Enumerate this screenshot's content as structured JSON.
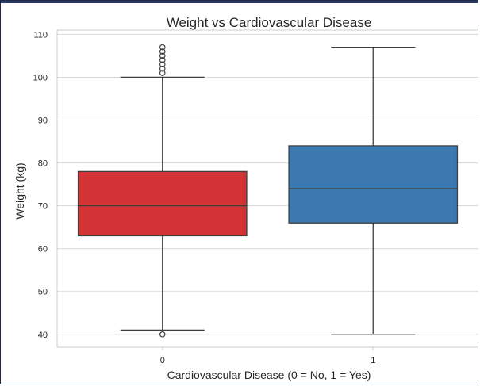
{
  "chart_data": {
    "type": "box",
    "title": "Weight vs Cardiovascular Disease",
    "xlabel": "Cardiovascular Disease (0 = No, 1 = Yes)",
    "ylabel": "Weight (kg)",
    "ylim": [
      37,
      111
    ],
    "y_ticks": [
      40,
      50,
      60,
      70,
      80,
      90,
      100,
      110
    ],
    "grid": true,
    "categories": [
      "0",
      "1"
    ],
    "boxes": [
      {
        "category": "0",
        "color": "#d23436",
        "whisker_low": 41,
        "q1": 63,
        "median": 70,
        "q3": 78,
        "whisker_high": 100,
        "outliers": [
          40,
          101,
          102,
          103,
          104,
          105,
          106,
          107
        ]
      },
      {
        "category": "1",
        "color": "#3c79b0",
        "whisker_low": 40,
        "q1": 66,
        "median": 74,
        "q3": 84,
        "whisker_high": 107,
        "outliers": []
      }
    ]
  }
}
